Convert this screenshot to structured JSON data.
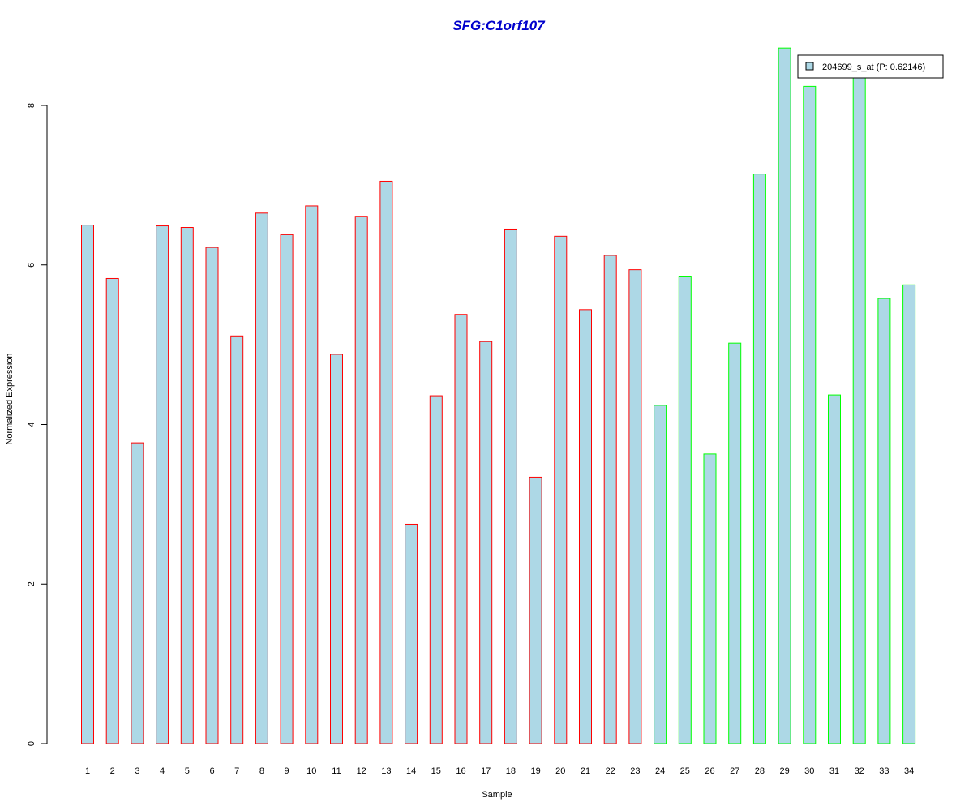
{
  "chart_data": {
    "type": "bar",
    "title": "SFG:C1orf107",
    "xlabel": "Sample",
    "ylabel": "Normalized Expression",
    "ylim": [
      0,
      8.8
    ],
    "yticks": [
      "0",
      "2",
      "4",
      "6",
      "8"
    ],
    "categories": [
      "1",
      "2",
      "3",
      "4",
      "5",
      "6",
      "7",
      "8",
      "9",
      "10",
      "11",
      "12",
      "13",
      "14",
      "15",
      "16",
      "17",
      "18",
      "19",
      "20",
      "21",
      "22",
      "23",
      "24",
      "25",
      "26",
      "27",
      "28",
      "29",
      "30",
      "31",
      "32",
      "33",
      "34"
    ],
    "series": [
      {
        "name": "204699_s_at (P: 0.62146)",
        "values": [
          6.5,
          5.83,
          3.77,
          6.49,
          6.47,
          6.22,
          5.11,
          6.65,
          6.38,
          6.74,
          4.88,
          6.61,
          7.05,
          2.75,
          4.36,
          5.38,
          5.04,
          6.45,
          3.34,
          6.36,
          5.44,
          6.12,
          5.94,
          4.24,
          5.86,
          3.63,
          5.02,
          7.14,
          8.72,
          8.24,
          4.37,
          8.36,
          5.58,
          5.75
        ],
        "fill": "#add8e6",
        "border_colors": [
          "#ff0000",
          "#ff0000",
          "#ff0000",
          "#ff0000",
          "#ff0000",
          "#ff0000",
          "#ff0000",
          "#ff0000",
          "#ff0000",
          "#ff0000",
          "#ff0000",
          "#ff0000",
          "#ff0000",
          "#ff0000",
          "#ff0000",
          "#ff0000",
          "#ff0000",
          "#ff0000",
          "#ff0000",
          "#ff0000",
          "#ff0000",
          "#ff0000",
          "#ff0000",
          "#00ff00",
          "#00ff00",
          "#00ff00",
          "#00ff00",
          "#00ff00",
          "#00ff00",
          "#00ff00",
          "#00ff00",
          "#00ff00",
          "#00ff00",
          "#00ff00"
        ]
      }
    ],
    "legend": {
      "placement": "top-right",
      "label": "204699_s_at (P: 0.62146)"
    },
    "grid": false,
    "colors": {
      "title": "#0000cc",
      "bar_fill": "#add8e6",
      "group_a_border": "#ff0000",
      "group_b_border": "#00ff00"
    }
  }
}
